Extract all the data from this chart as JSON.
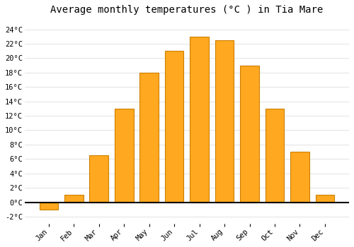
{
  "title": "Average monthly temperatures (°C ) in Tia Mare",
  "months": [
    "Jan",
    "Feb",
    "Mar",
    "Apr",
    "May",
    "Jun",
    "Jul",
    "Aug",
    "Sep",
    "Oct",
    "Nov",
    "Dec"
  ],
  "values": [
    -1.0,
    1.0,
    6.5,
    13.0,
    18.0,
    21.0,
    23.0,
    22.5,
    19.0,
    13.0,
    7.0,
    1.0
  ],
  "bar_color": "#FFA820",
  "bar_edge_color": "#CC8000",
  "ylim": [
    -3.0,
    25.5
  ],
  "yticks": [
    -2,
    0,
    2,
    4,
    6,
    8,
    10,
    12,
    14,
    16,
    18,
    20,
    22,
    24
  ],
  "ytick_labels": [
    "-2°C",
    "0°C",
    "2°C",
    "4°C",
    "6°C",
    "8°C",
    "10°C",
    "12°C",
    "14°C",
    "16°C",
    "18°C",
    "20°C",
    "22°C",
    "24°C"
  ],
  "background_color": "#ffffff",
  "grid_color": "#dddddd",
  "title_fontsize": 10,
  "tick_fontsize": 7.5,
  "font_family": "monospace",
  "bar_width": 0.75
}
